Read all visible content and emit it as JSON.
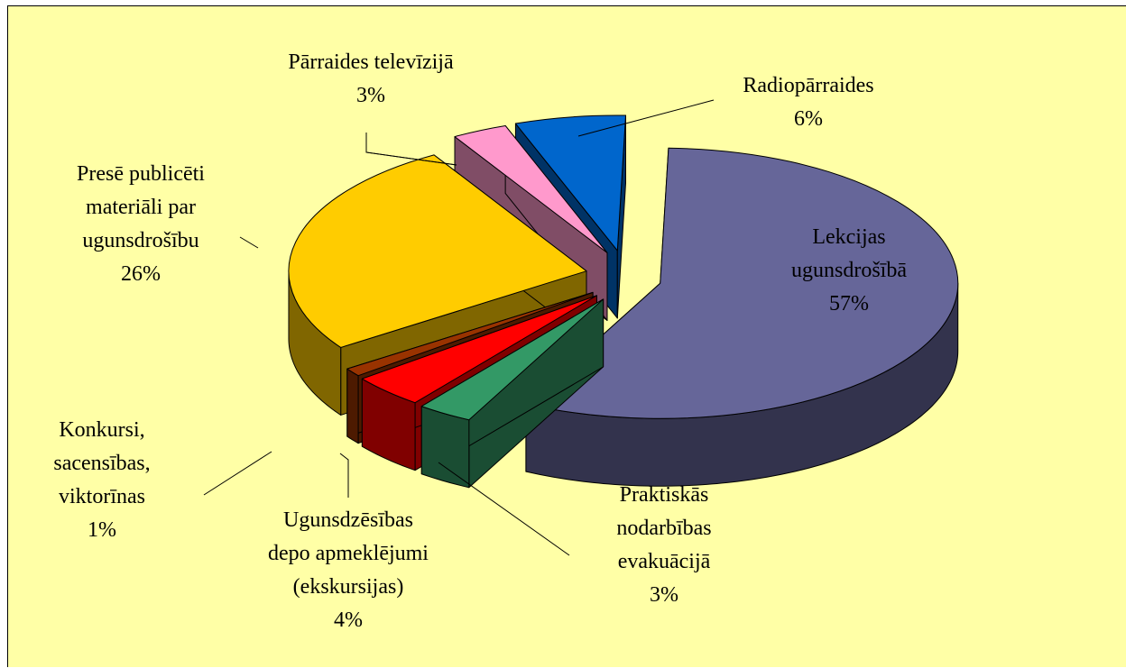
{
  "chart_data": {
    "type": "pie",
    "categories": [
      "Radiopārraides",
      "Lekcijas\nugunsdrošībā",
      "Praktiskās\nnodarbības\nevakuācijā",
      "Ugunsdzēsības\ndepo apmeklējumi\n(ekskursijas)",
      "Konkursi,\nsacensības,\nviktorīnas",
      "Presē publicēti\nmateriāli par\nugunsdrošību",
      "Pārraides televīzijā"
    ],
    "values": [
      6,
      57,
      3,
      4,
      1,
      26,
      3
    ],
    "value_labels": [
      "6%",
      "57%",
      "3%",
      "4%",
      "1%",
      "26%",
      "3%"
    ],
    "colors": [
      "#0066cc",
      "#666699",
      "#339966",
      "#ff0000",
      "#993300",
      "#ffcc00",
      "#ff99cc"
    ]
  }
}
